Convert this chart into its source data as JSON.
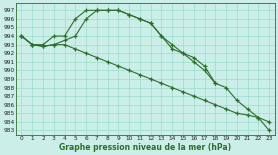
{
  "bg_color": "#cceee8",
  "grid_color": "#99ddcc",
  "line_color": "#2d6e2d",
  "xlabel": "Graphe pression niveau de la mer (hPa)",
  "x_ticks": [
    0,
    1,
    2,
    3,
    4,
    5,
    6,
    7,
    8,
    9,
    10,
    11,
    12,
    13,
    14,
    15,
    16,
    17,
    18,
    19,
    20,
    21,
    22,
    23
  ],
  "ylim_min": 982.5,
  "ylim_max": 997.8,
  "y_ticks": [
    983,
    984,
    985,
    986,
    987,
    988,
    989,
    990,
    991,
    992,
    993,
    994,
    995,
    996,
    997
  ],
  "line1_x": [
    0,
    1,
    2,
    3,
    4,
    5,
    6,
    7,
    8,
    9,
    10,
    11,
    12,
    13,
    14,
    15,
    16,
    17,
    18
  ],
  "line1_y": [
    994,
    993,
    993,
    994,
    994,
    996,
    997,
    997,
    997,
    997,
    996.5,
    996,
    995.5,
    994,
    992.5,
    992,
    991,
    990,
    988.5
  ],
  "line2_x": [
    0,
    1,
    2,
    3,
    4,
    5,
    6,
    7,
    8,
    9,
    10,
    11,
    12,
    13,
    14,
    15,
    16,
    17,
    18,
    19,
    20,
    21,
    22,
    23
  ],
  "line2_y": [
    994,
    993,
    992.8,
    993,
    993.5,
    994,
    996,
    997,
    997,
    997,
    996.5,
    996,
    995.5,
    994,
    993,
    992,
    991.5,
    990.5,
    988.5,
    988,
    986.5,
    985.5,
    984.5,
    983
  ],
  "line3_x": [
    0,
    1,
    2,
    3,
    4,
    5,
    6,
    7,
    8,
    9,
    10,
    11,
    12,
    13,
    14,
    15,
    16,
    17,
    18,
    19,
    20,
    21,
    22,
    23
  ],
  "line3_y": [
    994,
    993,
    992.8,
    993,
    993,
    992.5,
    992,
    991.5,
    991,
    990.5,
    990,
    989.5,
    989,
    988.5,
    988,
    987.5,
    987,
    986.5,
    986,
    985.5,
    985,
    984.8,
    984.5,
    984
  ]
}
